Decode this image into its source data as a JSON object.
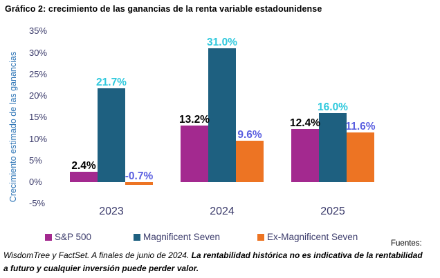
{
  "title": "Gráfico 2: crecimiento de las ganancias de la renta variable estadounidense",
  "chart_data": {
    "type": "bar",
    "title": "Gráfico 2: crecimiento de las ganancias de la renta variable estadounidense",
    "categories": [
      "2023",
      "2024",
      "2025"
    ],
    "series": [
      {
        "name": "S&P 500",
        "values": [
          2.4,
          13.2,
          12.4
        ],
        "labels": [
          "2.4%",
          "13.2%",
          "12.4%"
        ],
        "color": "#A3298F",
        "label_color": "#000000"
      },
      {
        "name": "Magnificent Seven",
        "values": [
          21.7,
          31.0,
          16.0
        ],
        "labels": [
          "21.7%",
          "31.0%",
          "16.0%"
        ],
        "color": "#1E6080",
        "label_color": "#30C9DD"
      },
      {
        "name": "Ex-Magnificent Seven",
        "values": [
          -0.7,
          9.6,
          11.6
        ],
        "labels": [
          "-0.7%",
          "9.6%",
          "11.6%"
        ],
        "color": "#ED7423",
        "label_color": "#5A5FE0"
      }
    ],
    "xlabel": "",
    "ylabel": "Crecimiento estimado de las ganancias",
    "ylim": [
      -5,
      35
    ],
    "ytick_step": 5,
    "ytick_labels": [
      "35%",
      "30%",
      "25%",
      "20%",
      "15%",
      "10%",
      "5%",
      "0%",
      "-5%"
    ],
    "grid": false,
    "legend_position": "bottom"
  },
  "colors": {
    "axis_title_text": "#2E75B6",
    "tick_text": "#3B3B6B",
    "year_text": "#3B3B6B",
    "legend_text": "#3B3B6B",
    "title_text": "#000000"
  },
  "footer": {
    "sources_label": "Fuentes:",
    "line1_normal": "WisdomTree y FactSet. A finales de junio de 2024. ",
    "line1_bold": "La rentabilidad histórica no es indicativa de la rentabilidad",
    "line2_bold": "a futuro y cualquier inversión puede perder valor."
  }
}
